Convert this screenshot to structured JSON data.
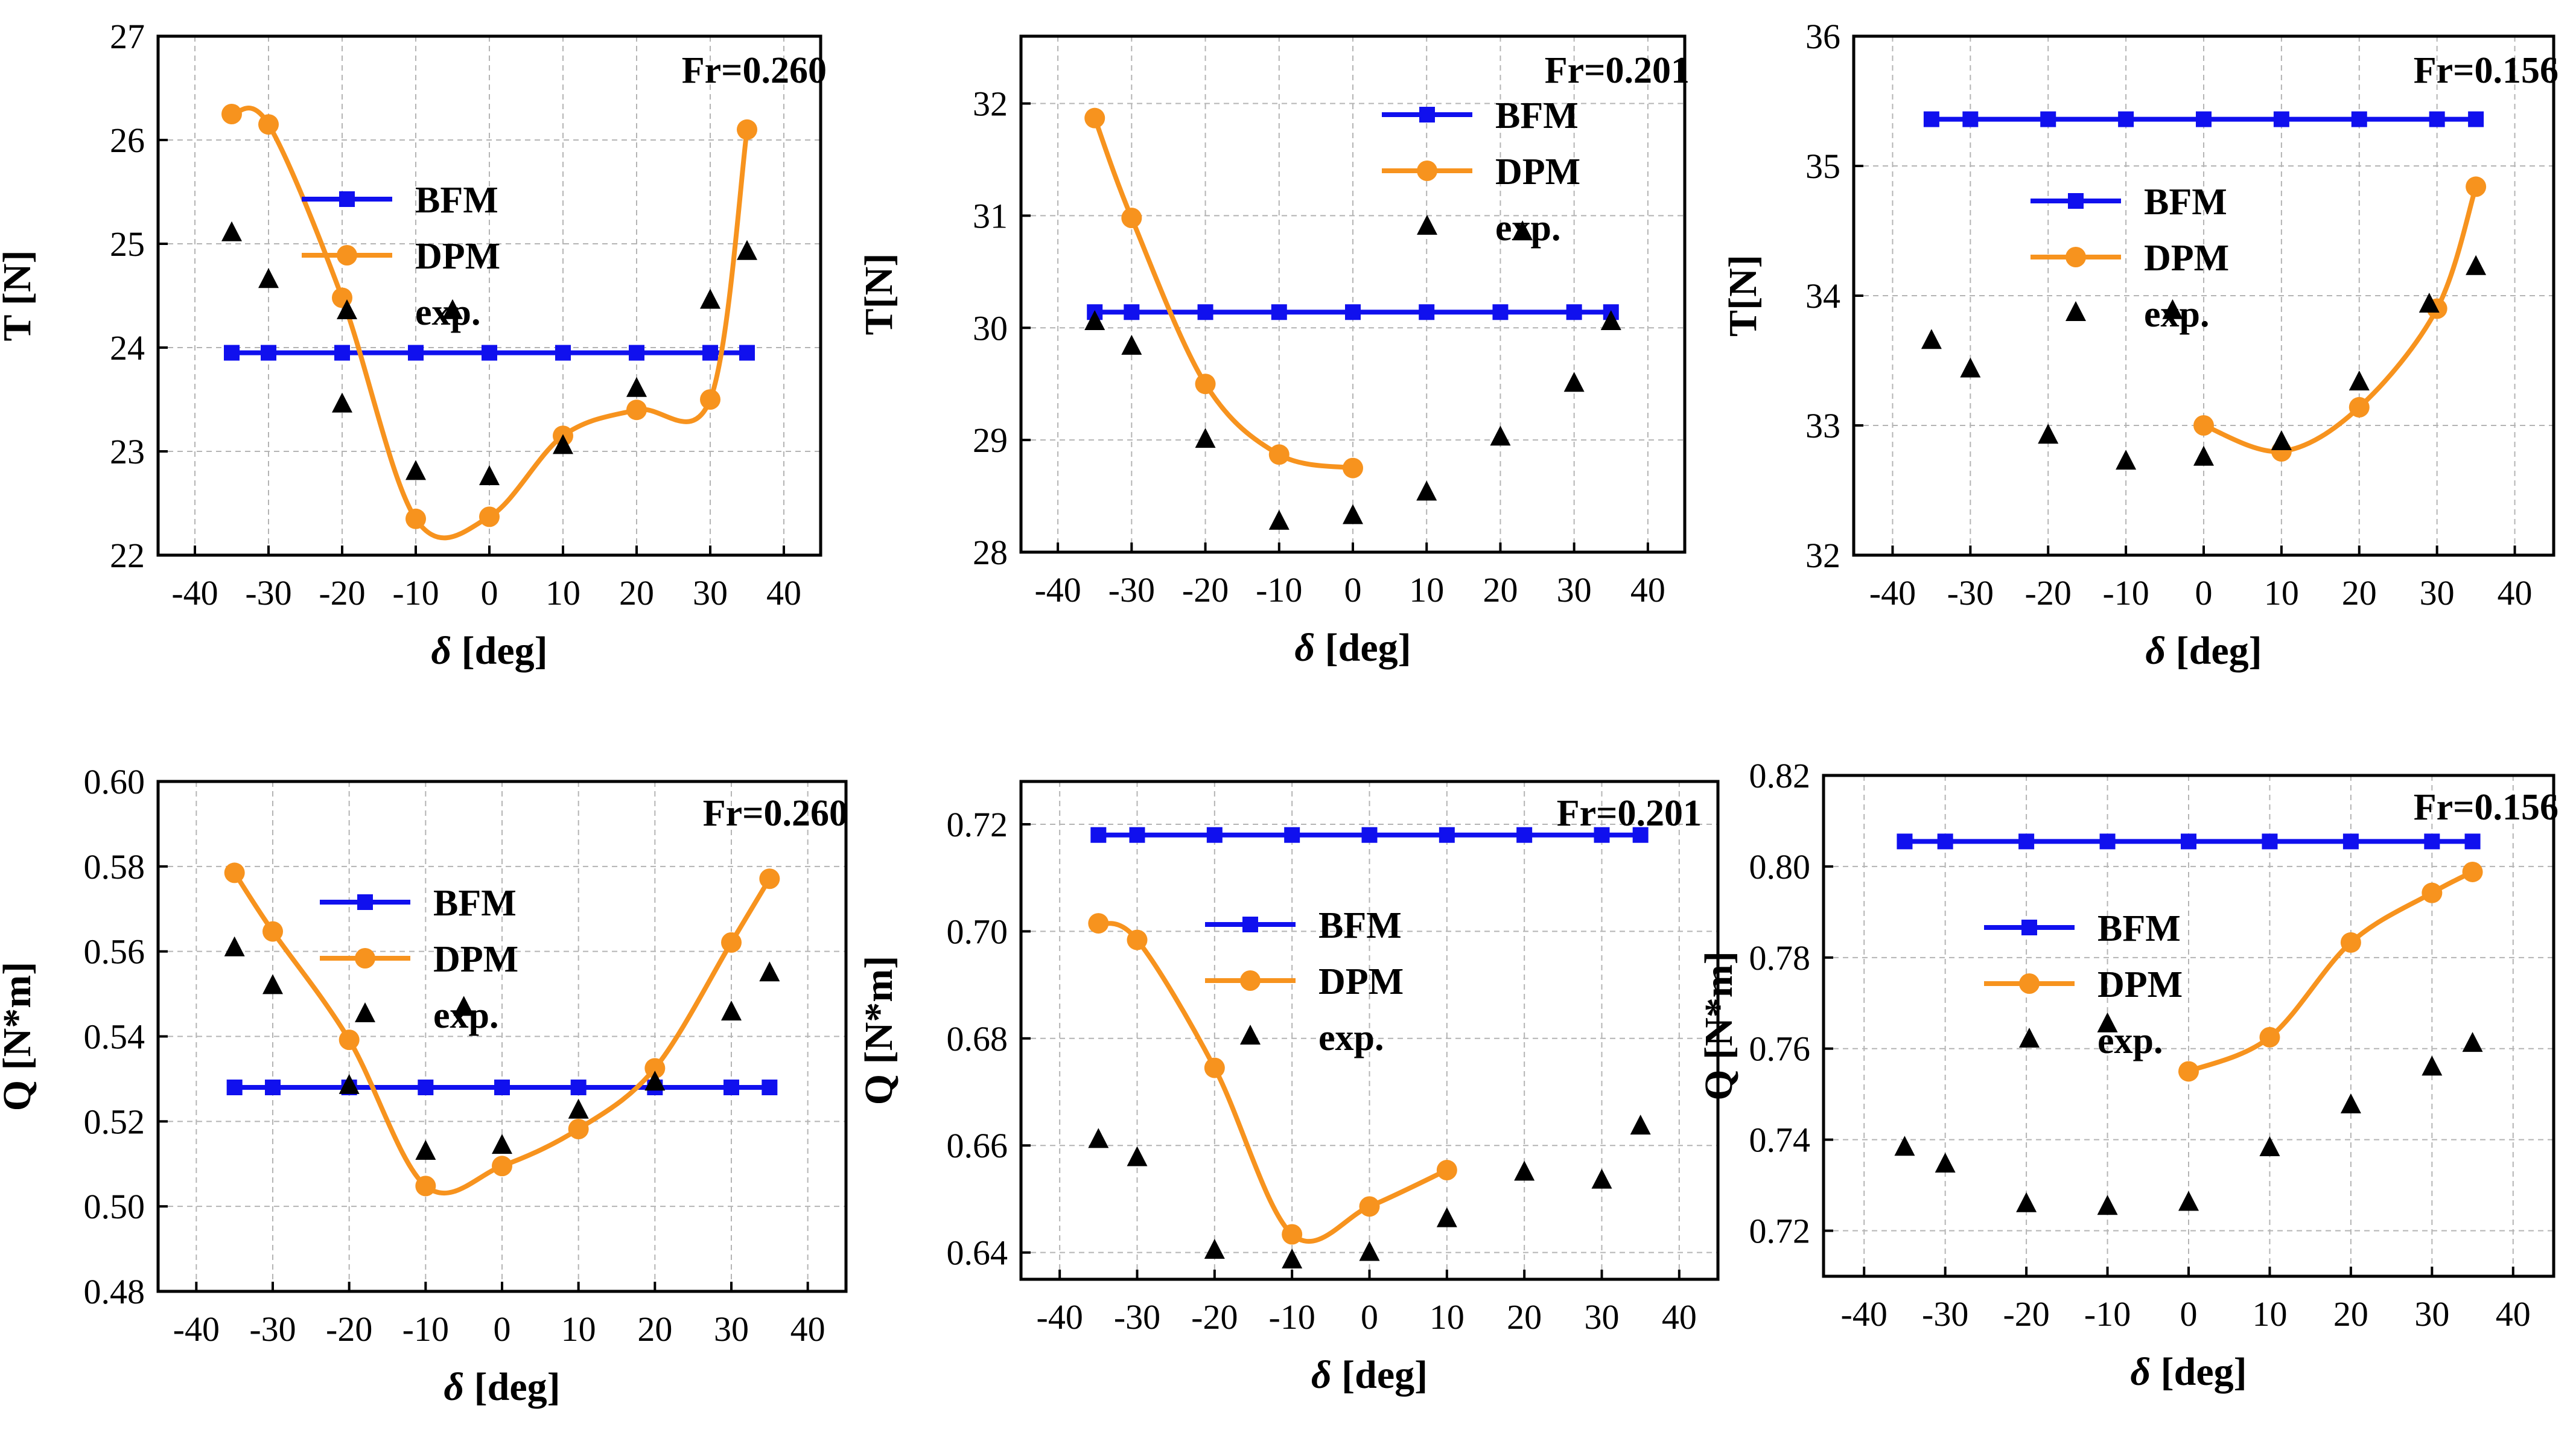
{
  "colors": {
    "bfm": "#1010ee",
    "dpm": "#f7931e",
    "exp": "#000000",
    "grid": "#b4b4b4"
  },
  "chart_data": [
    {
      "type": "line",
      "name": "thrust-fr0260",
      "annotation": "Fr=0.260",
      "xlabel_symbol": "δ",
      "xlabel_unit": " [deg]",
      "ylabel": "T [N]",
      "xlim": [
        -45,
        45
      ],
      "ylim": [
        22,
        27
      ],
      "xticks": [
        -40,
        -30,
        -20,
        -10,
        0,
        10,
        20,
        30,
        40
      ],
      "xtick_labels": [
        "-40",
        "-30",
        "-20",
        "-10",
        "0",
        "10",
        "20",
        "30",
        "40"
      ],
      "yticks": [
        22,
        23,
        24,
        25,
        26,
        27
      ],
      "ytick_labels": [
        "22",
        "23",
        "24",
        "25",
        "26",
        "27"
      ],
      "series": [
        {
          "name": "BFM",
          "marker": "square",
          "x": [
            -35,
            -30,
            -20,
            -10,
            0,
            10,
            20,
            30,
            35
          ],
          "y": [
            23.95,
            23.95,
            23.95,
            23.95,
            23.95,
            23.95,
            23.95,
            23.95,
            23.95
          ]
        },
        {
          "name": "DPM",
          "marker": "circle",
          "x": [
            -35,
            -30,
            -20,
            -10,
            0,
            10,
            20,
            30,
            35
          ],
          "y": [
            26.25,
            26.15,
            24.48,
            22.35,
            22.37,
            23.15,
            23.4,
            23.5,
            26.1
          ]
        },
        {
          "name": "exp.",
          "marker": "triangle",
          "x": [
            -35,
            -30,
            -20,
            -10,
            -5,
            0,
            10,
            20,
            30,
            35
          ],
          "y": [
            25.1,
            24.65,
            23.45,
            22.8,
            24.35,
            22.75,
            23.05,
            23.6,
            24.45,
            24.92
          ]
        }
      ]
    },
    {
      "type": "line",
      "name": "thrust-fr0201",
      "annotation": "Fr=0.201",
      "xlabel_symbol": "δ",
      "xlabel_unit": " [deg]",
      "ylabel": "T[N]",
      "xlim": [
        -45,
        45
      ],
      "ylim": [
        28,
        32.6
      ],
      "xticks": [
        -40,
        -30,
        -20,
        -10,
        0,
        10,
        20,
        30,
        40
      ],
      "xtick_labels": [
        "-40",
        "-30",
        "-20",
        "-10",
        "0",
        "10",
        "20",
        "30",
        "40"
      ],
      "yticks": [
        28,
        29,
        30,
        31,
        32
      ],
      "ytick_labels": [
        "28",
        "29",
        "30",
        "31",
        "32"
      ],
      "series": [
        {
          "name": "BFM",
          "marker": "square",
          "x": [
            -35,
            -30,
            -20,
            -10,
            0,
            10,
            20,
            30,
            35
          ],
          "y": [
            30.14,
            30.14,
            30.14,
            30.14,
            30.14,
            30.14,
            30.14,
            30.14,
            30.14
          ]
        },
        {
          "name": "DPM",
          "marker": "circle",
          "x": [
            -35,
            -30,
            -20,
            -10,
            0
          ],
          "y": [
            31.87,
            30.98,
            29.5,
            28.87,
            28.75
          ]
        },
        {
          "name": "exp.",
          "marker": "triangle",
          "x": [
            -35,
            -30,
            -20,
            -10,
            0,
            10,
            20,
            23,
            30,
            35
          ],
          "y": [
            30.05,
            29.83,
            29.0,
            28.27,
            28.32,
            28.53,
            29.02,
            30.85,
            29.5,
            30.05
          ]
        }
      ]
    },
    {
      "type": "line",
      "name": "thrust-fr0156",
      "annotation": "Fr=0.156",
      "xlabel_symbol": "δ",
      "xlabel_unit": " [deg]",
      "ylabel": "T[N]",
      "xlim": [
        -45,
        45
      ],
      "ylim": [
        32,
        36
      ],
      "xticks": [
        -40,
        -30,
        -20,
        -10,
        0,
        10,
        20,
        30,
        40
      ],
      "xtick_labels": [
        "-40",
        "-30",
        "-20",
        "-10",
        "0",
        "10",
        "20",
        "30",
        "40"
      ],
      "yticks": [
        32,
        33,
        34,
        35,
        36
      ],
      "ytick_labels": [
        "32",
        "33",
        "34",
        "35",
        "36"
      ],
      "series": [
        {
          "name": "BFM",
          "marker": "square",
          "x": [
            -35,
            -30,
            -20,
            -10,
            0,
            10,
            20,
            30,
            35
          ],
          "y": [
            35.36,
            35.36,
            35.36,
            35.36,
            35.36,
            35.36,
            35.36,
            35.36,
            35.36
          ]
        },
        {
          "name": "DPM",
          "marker": "circle",
          "x": [
            0,
            10,
            20,
            30,
            35
          ],
          "y": [
            33.0,
            32.8,
            33.14,
            33.9,
            34.84
          ]
        },
        {
          "name": "exp.",
          "marker": "triangle",
          "x": [
            -35,
            -30,
            -20,
            -10,
            -4,
            0,
            10,
            20,
            29,
            35
          ],
          "y": [
            33.65,
            33.43,
            32.92,
            32.72,
            33.88,
            32.75,
            32.87,
            33.33,
            33.93,
            34.22
          ]
        }
      ]
    },
    {
      "type": "line",
      "name": "torque-fr0260",
      "annotation": "Fr=0.260",
      "xlabel_symbol": "δ",
      "xlabel_unit": " [deg]",
      "ylabel": "Q [N*m]",
      "xlim": [
        -45,
        45
      ],
      "ylim": [
        0.48,
        0.6
      ],
      "xticks": [
        -40,
        -30,
        -20,
        -10,
        0,
        10,
        20,
        30,
        40
      ],
      "xtick_labels": [
        "-40",
        "-30",
        "-20",
        "-10",
        "0",
        "10",
        "20",
        "30",
        "40"
      ],
      "yticks": [
        0.48,
        0.5,
        0.52,
        0.54,
        0.56,
        0.58,
        0.6
      ],
      "ytick_labels": [
        "0.48",
        "0.50",
        "0.52",
        "0.54",
        "0.56",
        "0.58",
        "0.60"
      ],
      "series": [
        {
          "name": "BFM",
          "marker": "square",
          "x": [
            -35,
            -30,
            -20,
            -10,
            0,
            10,
            20,
            30,
            35
          ],
          "y": [
            0.528,
            0.528,
            0.528,
            0.528,
            0.528,
            0.528,
            0.528,
            0.528,
            0.528
          ]
        },
        {
          "name": "DPM",
          "marker": "circle",
          "x": [
            -35,
            -30,
            -20,
            -10,
            0,
            10,
            20,
            30,
            35
          ],
          "y": [
            0.5785,
            0.5647,
            0.5392,
            0.5048,
            0.5095,
            0.5182,
            0.5325,
            0.5621,
            0.5771
          ]
        },
        {
          "name": "exp.",
          "marker": "triangle",
          "x": [
            -35,
            -30,
            -20,
            -10,
            -5,
            0,
            10,
            20,
            30,
            35
          ],
          "y": [
            0.5607,
            0.5518,
            0.5283,
            0.5128,
            0.5467,
            0.5142,
            0.5225,
            0.5291,
            0.5456,
            0.5548
          ]
        }
      ]
    },
    {
      "type": "line",
      "name": "torque-fr0201",
      "annotation": "Fr=0.201",
      "xlabel_symbol": "δ",
      "xlabel_unit": " [deg]",
      "ylabel": "Q [N*m]",
      "xlim": [
        -45,
        45
      ],
      "ylim": [
        0.635,
        0.728
      ],
      "xticks": [
        -40,
        -30,
        -20,
        -10,
        0,
        10,
        20,
        30,
        40
      ],
      "xtick_labels": [
        "-40",
        "-30",
        "-20",
        "-10",
        "0",
        "10",
        "20",
        "30",
        "40"
      ],
      "yticks": [
        0.64,
        0.66,
        0.68,
        0.7,
        0.72
      ],
      "ytick_labels": [
        "0.64",
        "0.66",
        "0.68",
        "0.70",
        "0.72"
      ],
      "series": [
        {
          "name": "BFM",
          "marker": "square",
          "x": [
            -35,
            -30,
            -20,
            -10,
            0,
            10,
            20,
            30,
            35
          ],
          "y": [
            0.718,
            0.718,
            0.718,
            0.718,
            0.718,
            0.718,
            0.718,
            0.718,
            0.718
          ]
        },
        {
          "name": "DPM",
          "marker": "circle",
          "x": [
            -35,
            -30,
            -20,
            -10,
            0,
            10
          ],
          "y": [
            0.7015,
            0.6984,
            0.6745,
            0.6434,
            0.6486,
            0.6554
          ]
        },
        {
          "name": "exp.",
          "marker": "triangle",
          "x": [
            -35,
            -30,
            -20,
            -10,
            0,
            10,
            20,
            30,
            35
          ],
          "y": [
            0.661,
            0.6576,
            0.6403,
            0.6385,
            0.6399,
            0.6462,
            0.6549,
            0.6534,
            0.6635
          ]
        }
      ]
    },
    {
      "type": "line",
      "name": "torque-fr0156",
      "annotation": "Fr=0.156",
      "xlabel_symbol": "δ",
      "xlabel_unit": " [deg]",
      "ylabel": "Q [N*m]",
      "xlim": [
        -45,
        45
      ],
      "ylim": [
        0.71,
        0.82
      ],
      "xticks": [
        -40,
        -30,
        -20,
        -10,
        0,
        10,
        20,
        30,
        40
      ],
      "xtick_labels": [
        "-40",
        "-30",
        "-20",
        "-10",
        "0",
        "10",
        "20",
        "30",
        "40"
      ],
      "yticks": [
        0.72,
        0.74,
        0.76,
        0.78,
        0.8,
        0.82
      ],
      "ytick_labels": [
        "0.72",
        "0.74",
        "0.76",
        "0.78",
        "0.80",
        "0.82"
      ],
      "series": [
        {
          "name": "BFM",
          "marker": "square",
          "x": [
            -35,
            -30,
            -20,
            -10,
            0,
            10,
            20,
            30,
            35
          ],
          "y": [
            0.8055,
            0.8055,
            0.8055,
            0.8055,
            0.8055,
            0.8055,
            0.8055,
            0.8055,
            0.8055
          ]
        },
        {
          "name": "DPM",
          "marker": "circle",
          "x": [
            0,
            10,
            20,
            30,
            35
          ],
          "y": [
            0.755,
            0.7625,
            0.7833,
            0.7942,
            0.7988
          ]
        },
        {
          "name": "exp.",
          "marker": "triangle",
          "x": [
            -35,
            -30,
            -20,
            -10,
            -10,
            0,
            10,
            20,
            30,
            35
          ],
          "y": [
            0.7382,
            0.7345,
            0.7258,
            0.7252,
            0.7653,
            0.7261,
            0.7381,
            0.7475,
            0.7558,
            0.761
          ]
        }
      ]
    }
  ]
}
